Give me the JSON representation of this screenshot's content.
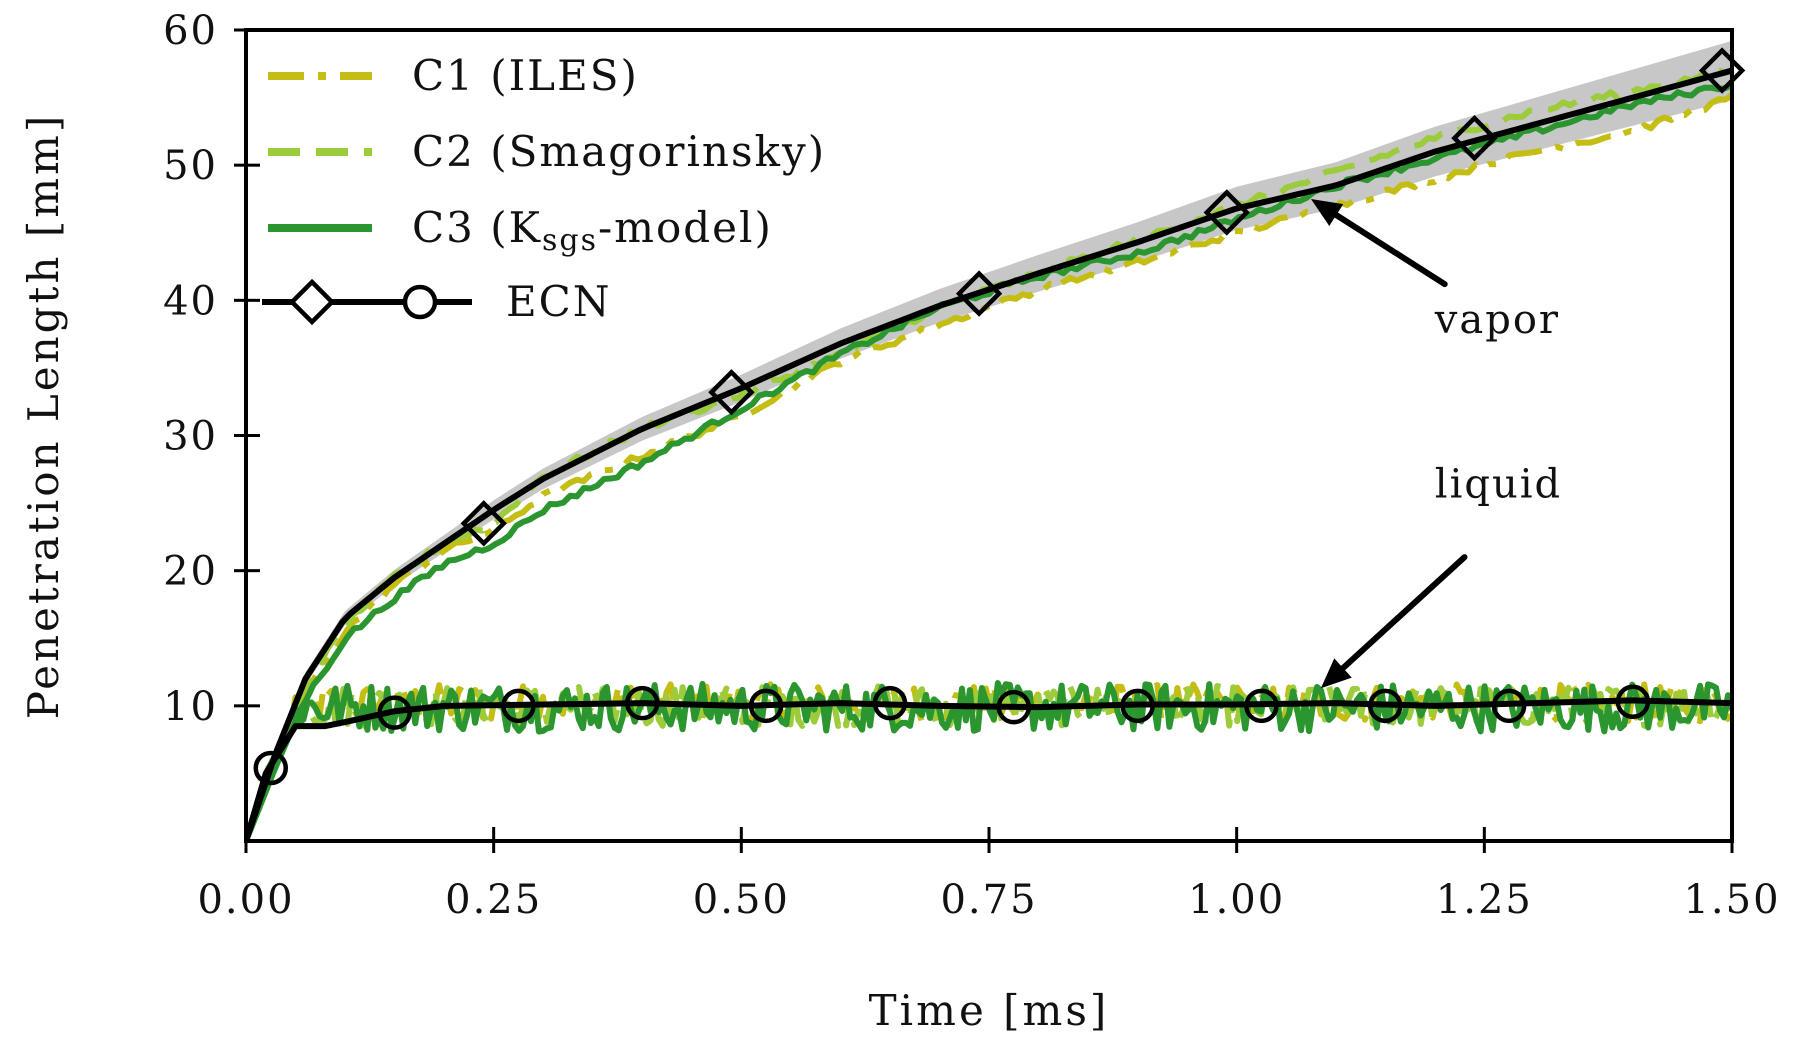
{
  "chart_data": {
    "type": "line",
    "title": "",
    "xlabel": "Time [ms]",
    "ylabel": "Penetration Length [mm]",
    "xlim": [
      0,
      1.5
    ],
    "ylim": [
      0,
      60
    ],
    "x_ticks": [
      0,
      0.25,
      0.5,
      0.75,
      1.0,
      1.25,
      1.5
    ],
    "x_tick_labels": [
      "0.00",
      "0.25",
      "0.50",
      "0.75",
      "1.00",
      "1.25",
      "1.50"
    ],
    "y_ticks": [
      10,
      20,
      30,
      40,
      50,
      60
    ],
    "y_tick_labels": [
      "10",
      "20",
      "30",
      "40",
      "50",
      "60"
    ],
    "legend_position": "top-left",
    "colors": {
      "c1": "#c4be14",
      "c2": "#9ccc3c",
      "c3": "#2b9630",
      "ecn": "#000000",
      "ecn_band": "#b4b4b4"
    },
    "series": [
      {
        "key": "c1",
        "name": "C1 (ILES)",
        "style": "dashdot",
        "vapor_x": [
          0,
          0.03,
          0.06,
          0.1,
          0.15,
          0.2,
          0.25,
          0.3,
          0.4,
          0.5,
          0.6,
          0.7,
          0.8,
          0.9,
          1.0,
          1.1,
          1.2,
          1.3,
          1.4,
          1.5
        ],
        "vapor_y": [
          0,
          6,
          11,
          15.5,
          19,
          21.5,
          23,
          25.5,
          28.5,
          31.5,
          35.5,
          38.2,
          40.8,
          42.8,
          45,
          47,
          49,
          51,
          52.5,
          55
        ],
        "liquid_mean": 10.2,
        "liquid_amplitude": 1.4
      },
      {
        "key": "c2",
        "name": "C2 (Smagorinsky)",
        "style": "dashed",
        "vapor_x": [
          0,
          0.03,
          0.06,
          0.1,
          0.15,
          0.2,
          0.25,
          0.3,
          0.4,
          0.5,
          0.6,
          0.7,
          0.8,
          0.9,
          1.0,
          1.1,
          1.2,
          1.3,
          1.4,
          1.5
        ],
        "vapor_y": [
          0,
          6,
          11.5,
          16,
          19.5,
          22,
          23.5,
          27,
          30.5,
          33,
          36,
          39.5,
          42,
          44.5,
          47,
          49.5,
          52,
          54,
          55.5,
          57
        ],
        "liquid_mean": 10.0,
        "liquid_amplitude": 1.5
      },
      {
        "key": "c3",
        "name": "C3 (K",
        "subscript": "sgs",
        "name_suffix": "-model)",
        "style": "solid",
        "vapor_x": [
          0,
          0.03,
          0.06,
          0.1,
          0.15,
          0.2,
          0.25,
          0.3,
          0.4,
          0.5,
          0.6,
          0.7,
          0.8,
          0.9,
          1.0,
          1.1,
          1.2,
          1.3,
          1.4,
          1.5
        ],
        "vapor_y": [
          0,
          5.5,
          10.5,
          15,
          18,
          20.5,
          22,
          24.5,
          28,
          32,
          36,
          39.5,
          41.8,
          43.5,
          46,
          48.5,
          50.5,
          52.5,
          54.5,
          56
        ],
        "liquid_mean": 9.9,
        "liquid_amplitude": 1.8
      },
      {
        "key": "ecn",
        "name": "ECN",
        "style": "solid-markers",
        "vapor_x": [
          0,
          0.03,
          0.06,
          0.1,
          0.15,
          0.2,
          0.25,
          0.3,
          0.4,
          0.5,
          0.6,
          0.7,
          0.8,
          0.9,
          1.0,
          1.1,
          1.2,
          1.3,
          1.4,
          1.5
        ],
        "vapor_y": [
          0,
          6.5,
          12,
          16.5,
          19.5,
          22,
          24.5,
          26.8,
          30.5,
          33.5,
          36.8,
          39.6,
          42,
          44.3,
          46.8,
          48.5,
          51,
          53,
          55,
          57
        ],
        "vapor_markers_x": [
          0.24,
          0.49,
          0.74,
          0.99,
          1.24,
          1.49
        ],
        "vapor_markers_y": [
          23.5,
          33.2,
          40.5,
          46.5,
          52,
          57
        ],
        "liquid_x": [
          0,
          0.02,
          0.05,
          0.08,
          0.1,
          0.15,
          0.2,
          0.3,
          0.4,
          0.5,
          0.6,
          0.7,
          0.8,
          0.9,
          1.0,
          1.1,
          1.2,
          1.3,
          1.4,
          1.5
        ],
        "liquid_y": [
          0,
          5,
          8.5,
          8.5,
          8.8,
          9.6,
          10.0,
          10.1,
          10.2,
          10.0,
          10.2,
          10.0,
          9.9,
          10.1,
          10.1,
          10.2,
          10.0,
          10.2,
          10.4,
          10.2
        ],
        "liquid_markers_x": [
          0.025,
          0.15,
          0.275,
          0.4,
          0.525,
          0.65,
          0.775,
          0.9,
          1.025,
          1.15,
          1.275,
          1.4
        ],
        "liquid_markers_y": [
          5.4,
          9.5,
          10.0,
          10.2,
          10.0,
          10.2,
          9.9,
          10.0,
          10.0,
          10.0,
          10.0,
          10.3
        ]
      }
    ],
    "annotations": [
      {
        "text": "vapor",
        "arrow_from": [
          1.21,
          41.2
        ],
        "arrow_to": [
          1.075,
          47.5
        ],
        "label_at": [
          1.2,
          37.6
        ]
      },
      {
        "text": "liquid",
        "arrow_from": [
          1.23,
          21.0
        ],
        "arrow_to": [
          1.085,
          11.3
        ],
        "label_at": [
          1.2,
          25.4
        ]
      }
    ]
  }
}
